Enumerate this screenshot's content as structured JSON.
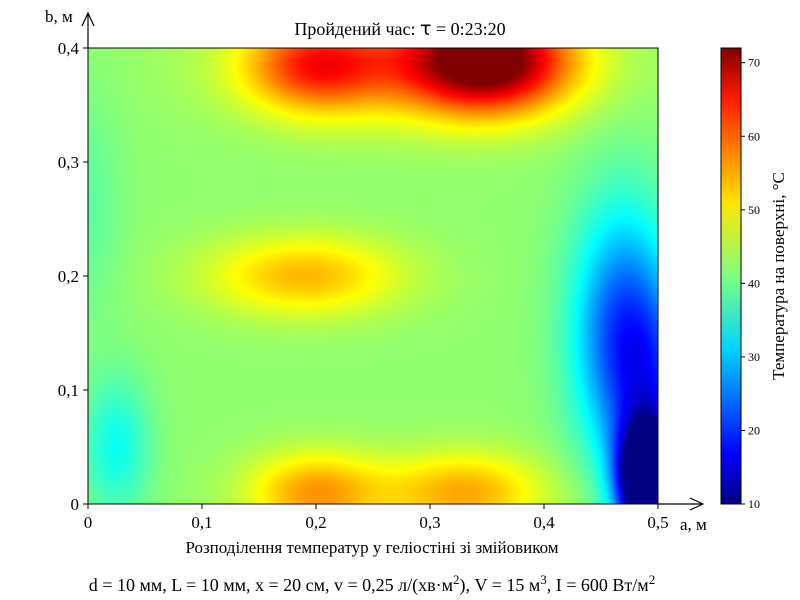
{
  "chart_data": {
    "type": "heatmap",
    "title_prefix": "Пройдений час: ",
    "title_symbol": "τ",
    "title_suffix": " = 0:23:20",
    "xlabel": "Розподілення температур у геліостіні зі змійовиком",
    "x_axis_name": "a, м",
    "y_axis_name": "b, м",
    "colorbar_label": "Температура на поверхні, °C",
    "xlim": [
      0,
      0.5
    ],
    "ylim": [
      0,
      0.4
    ],
    "x_ticks": [
      "0",
      "0,1",
      "0,2",
      "0,3",
      "0,4",
      "0,5"
    ],
    "y_ticks": [
      "0",
      "0,1",
      "0,2",
      "0,3",
      "0,4"
    ],
    "colorbar_range": [
      10,
      72
    ],
    "colorbar_ticks": [
      "10",
      "20",
      "30",
      "40",
      "50",
      "60",
      "70"
    ],
    "colormap": "jet",
    "background_temperature": 42,
    "features": [
      {
        "kind": "hot",
        "x": 0.35,
        "y": 0.39,
        "value": 72
      },
      {
        "kind": "hot",
        "x": 0.2,
        "y": 0.385,
        "value": 64
      },
      {
        "kind": "warm",
        "x": 0.19,
        "y": 0.2,
        "value": 53
      },
      {
        "kind": "warm",
        "x": 0.2,
        "y": 0.01,
        "value": 55
      },
      {
        "kind": "warm",
        "x": 0.33,
        "y": 0.01,
        "value": 54
      },
      {
        "kind": "cool",
        "x": 0.47,
        "y": 0.15,
        "value": 22
      },
      {
        "kind": "cold",
        "x": 0.49,
        "y": 0.02,
        "value": 10
      },
      {
        "kind": "cool",
        "x": 0.025,
        "y": 0.05,
        "value": 34
      }
    ],
    "parameters": [
      {
        "text": "d = 10 мм, L = 10 мм, x = 20 см, v = 0,25 л/(хв·м",
        "sup": "2"
      },
      {
        "text": "), V = 15 м",
        "sup": "3"
      },
      {
        "text": ", I = 600 Вт/м",
        "sup": "2"
      }
    ]
  }
}
